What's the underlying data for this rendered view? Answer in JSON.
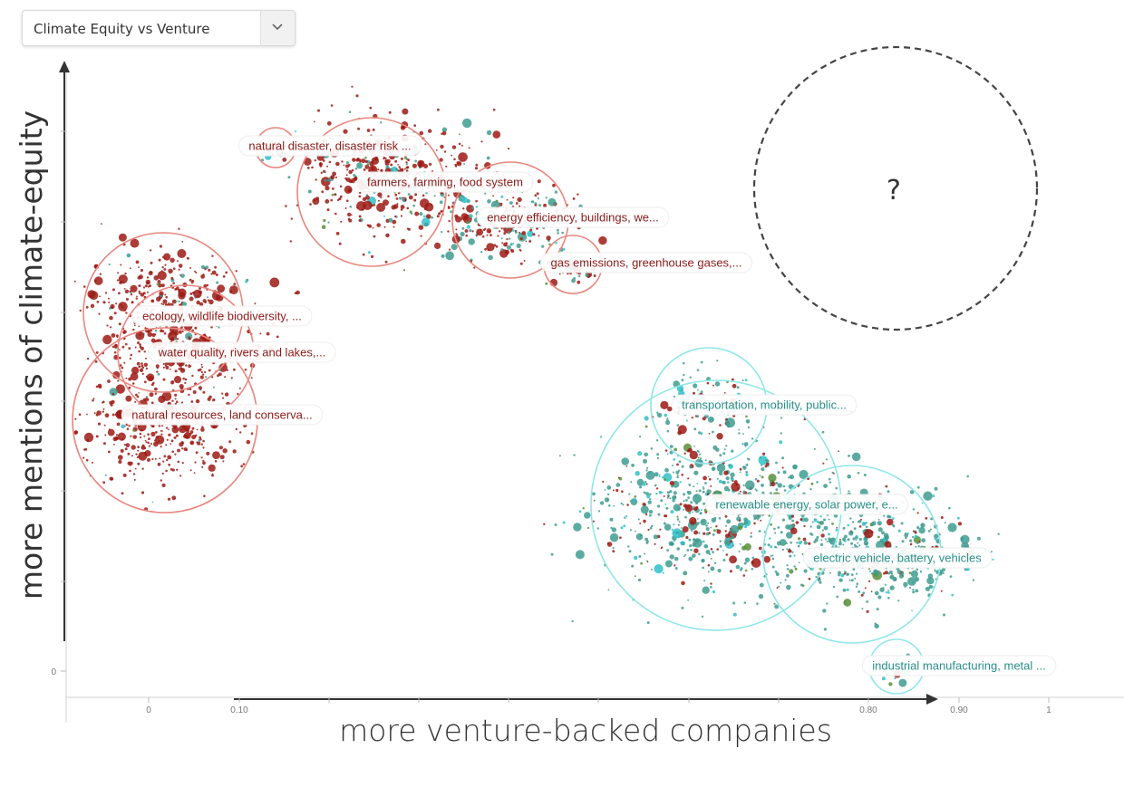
{
  "dropdown": {
    "selected": "Climate Equity vs Venture",
    "icon": "chevron-down-icon"
  },
  "colors": {
    "equity_circle": "#e8877f",
    "equity_label": "#8b1a1a",
    "equity_point": "#9c1a14",
    "venture_circle": "#8fe6ea",
    "venture_label": "#2a8f87",
    "venture_point": "#3f9c90",
    "mixed_point": "#5a8f3a"
  },
  "chart_data": {
    "type": "scatter",
    "xlabel": "more venture-backed companies",
    "ylabel": "more mentions of climate-equity",
    "x_ticks": [
      "0",
      "0.10",
      "0.80",
      "0.90",
      "1"
    ],
    "y_ticks": [
      "0"
    ],
    "placeholder_label": "?",
    "clusters": [
      {
        "label": "natural disaster, disaster risk ...",
        "group": "equity"
      },
      {
        "label": "farmers, farming, food system",
        "group": "equity"
      },
      {
        "label": "energy efficiency, buildings, we...",
        "group": "equity"
      },
      {
        "label": "gas emissions, greenhouse gases,...",
        "group": "equity"
      },
      {
        "label": "ecology, wildlife biodiversity, ...",
        "group": "equity"
      },
      {
        "label": "water quality, rivers and lakes,...",
        "group": "equity"
      },
      {
        "label": "natural resources, land conserva...",
        "group": "equity"
      },
      {
        "label": "transportation, mobility, public...",
        "group": "venture"
      },
      {
        "label": "renewable energy, solar power, e...",
        "group": "venture"
      },
      {
        "label": "electric vehicle, battery, vehicles",
        "group": "venture"
      },
      {
        "label": "industrial manufacturing, metal ...",
        "group": "venture"
      }
    ]
  }
}
